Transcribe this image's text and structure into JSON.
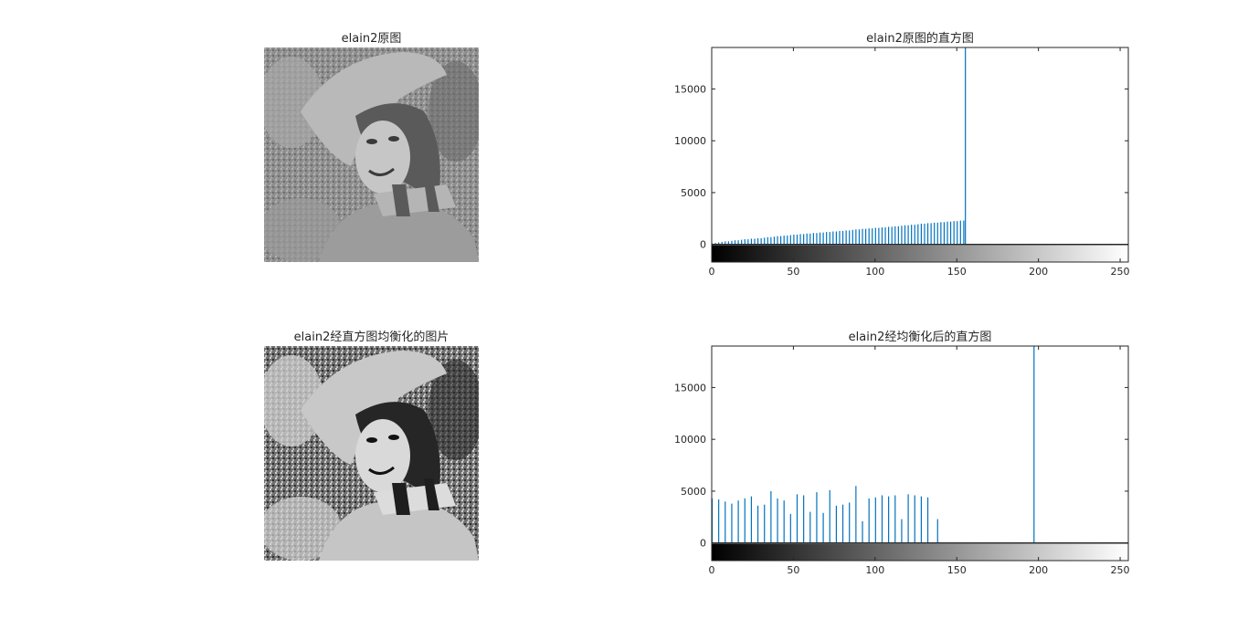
{
  "figure": {
    "titles": {
      "original_image": "elain2原图",
      "original_hist": "elain2原图的直方图",
      "equalized_image": "elain2经直方图均衡化的图片",
      "equalized_hist": "elain2经均衡化后的直方图"
    },
    "image_description_colors": {
      "bar_color": "#0072BD",
      "axis_color": "#262626"
    }
  },
  "chart_data": [
    {
      "type": "bar",
      "title": "elain2原图的直方图",
      "xlabel": "",
      "ylabel": "",
      "xlim": [
        0,
        255
      ],
      "ylim": [
        -1700,
        19000
      ],
      "xticks": [
        0,
        50,
        100,
        150,
        200,
        250
      ],
      "yticks": [
        0,
        5000,
        10000,
        15000
      ],
      "colorbar": "gray 0-255 below x-axis",
      "x": [
        0,
        2,
        4,
        6,
        8,
        10,
        12,
        14,
        16,
        18,
        20,
        22,
        24,
        26,
        28,
        30,
        32,
        34,
        36,
        38,
        40,
        42,
        44,
        46,
        48,
        50,
        52,
        54,
        56,
        58,
        60,
        62,
        64,
        66,
        68,
        70,
        72,
        74,
        76,
        78,
        80,
        82,
        84,
        86,
        88,
        90,
        92,
        94,
        96,
        98,
        100,
        102,
        104,
        106,
        108,
        110,
        112,
        114,
        116,
        118,
        120,
        122,
        124,
        126,
        128,
        130,
        132,
        134,
        136,
        138,
        140,
        142,
        144,
        146,
        148,
        150,
        152,
        154,
        155
      ],
      "values": [
        100,
        150,
        200,
        250,
        300,
        300,
        350,
        400,
        400,
        450,
        500,
        500,
        550,
        550,
        600,
        600,
        650,
        700,
        700,
        750,
        800,
        800,
        850,
        850,
        900,
        950,
        950,
        1000,
        1000,
        1050,
        1050,
        1100,
        1100,
        1150,
        1150,
        1200,
        1200,
        1250,
        1250,
        1300,
        1300,
        1350,
        1350,
        1400,
        1450,
        1450,
        1500,
        1500,
        1550,
        1550,
        1600,
        1600,
        1650,
        1650,
        1700,
        1700,
        1750,
        1750,
        1800,
        1850,
        1850,
        1900,
        1900,
        1950,
        2000,
        2000,
        2050,
        2050,
        2100,
        2100,
        2150,
        2150,
        2200,
        2200,
        2250,
        2250,
        2300,
        2300,
        19000
      ]
    },
    {
      "type": "bar",
      "title": "elain2经均衡化后的直方图",
      "xlabel": "",
      "ylabel": "",
      "xlim": [
        0,
        255
      ],
      "ylim": [
        -1700,
        19000
      ],
      "xticks": [
        0,
        50,
        100,
        150,
        200,
        250
      ],
      "yticks": [
        0,
        5000,
        10000,
        15000
      ],
      "colorbar": "gray 0-255 below x-axis",
      "x": [
        0,
        4,
        8,
        12,
        16,
        20,
        24,
        28,
        32,
        36,
        40,
        44,
        48,
        52,
        56,
        60,
        64,
        68,
        72,
        76,
        80,
        84,
        88,
        92,
        96,
        100,
        104,
        108,
        112,
        116,
        120,
        124,
        128,
        132,
        138,
        197
      ],
      "values": [
        4300,
        4200,
        4000,
        3800,
        4100,
        4300,
        4500,
        3600,
        3700,
        5000,
        4300,
        4100,
        2800,
        4700,
        4600,
        3000,
        4900,
        2900,
        5100,
        3600,
        3700,
        3900,
        5500,
        2100,
        4300,
        4400,
        4600,
        4500,
        4600,
        2300,
        4700,
        4600,
        4500,
        4400,
        2300,
        19000
      ]
    }
  ]
}
